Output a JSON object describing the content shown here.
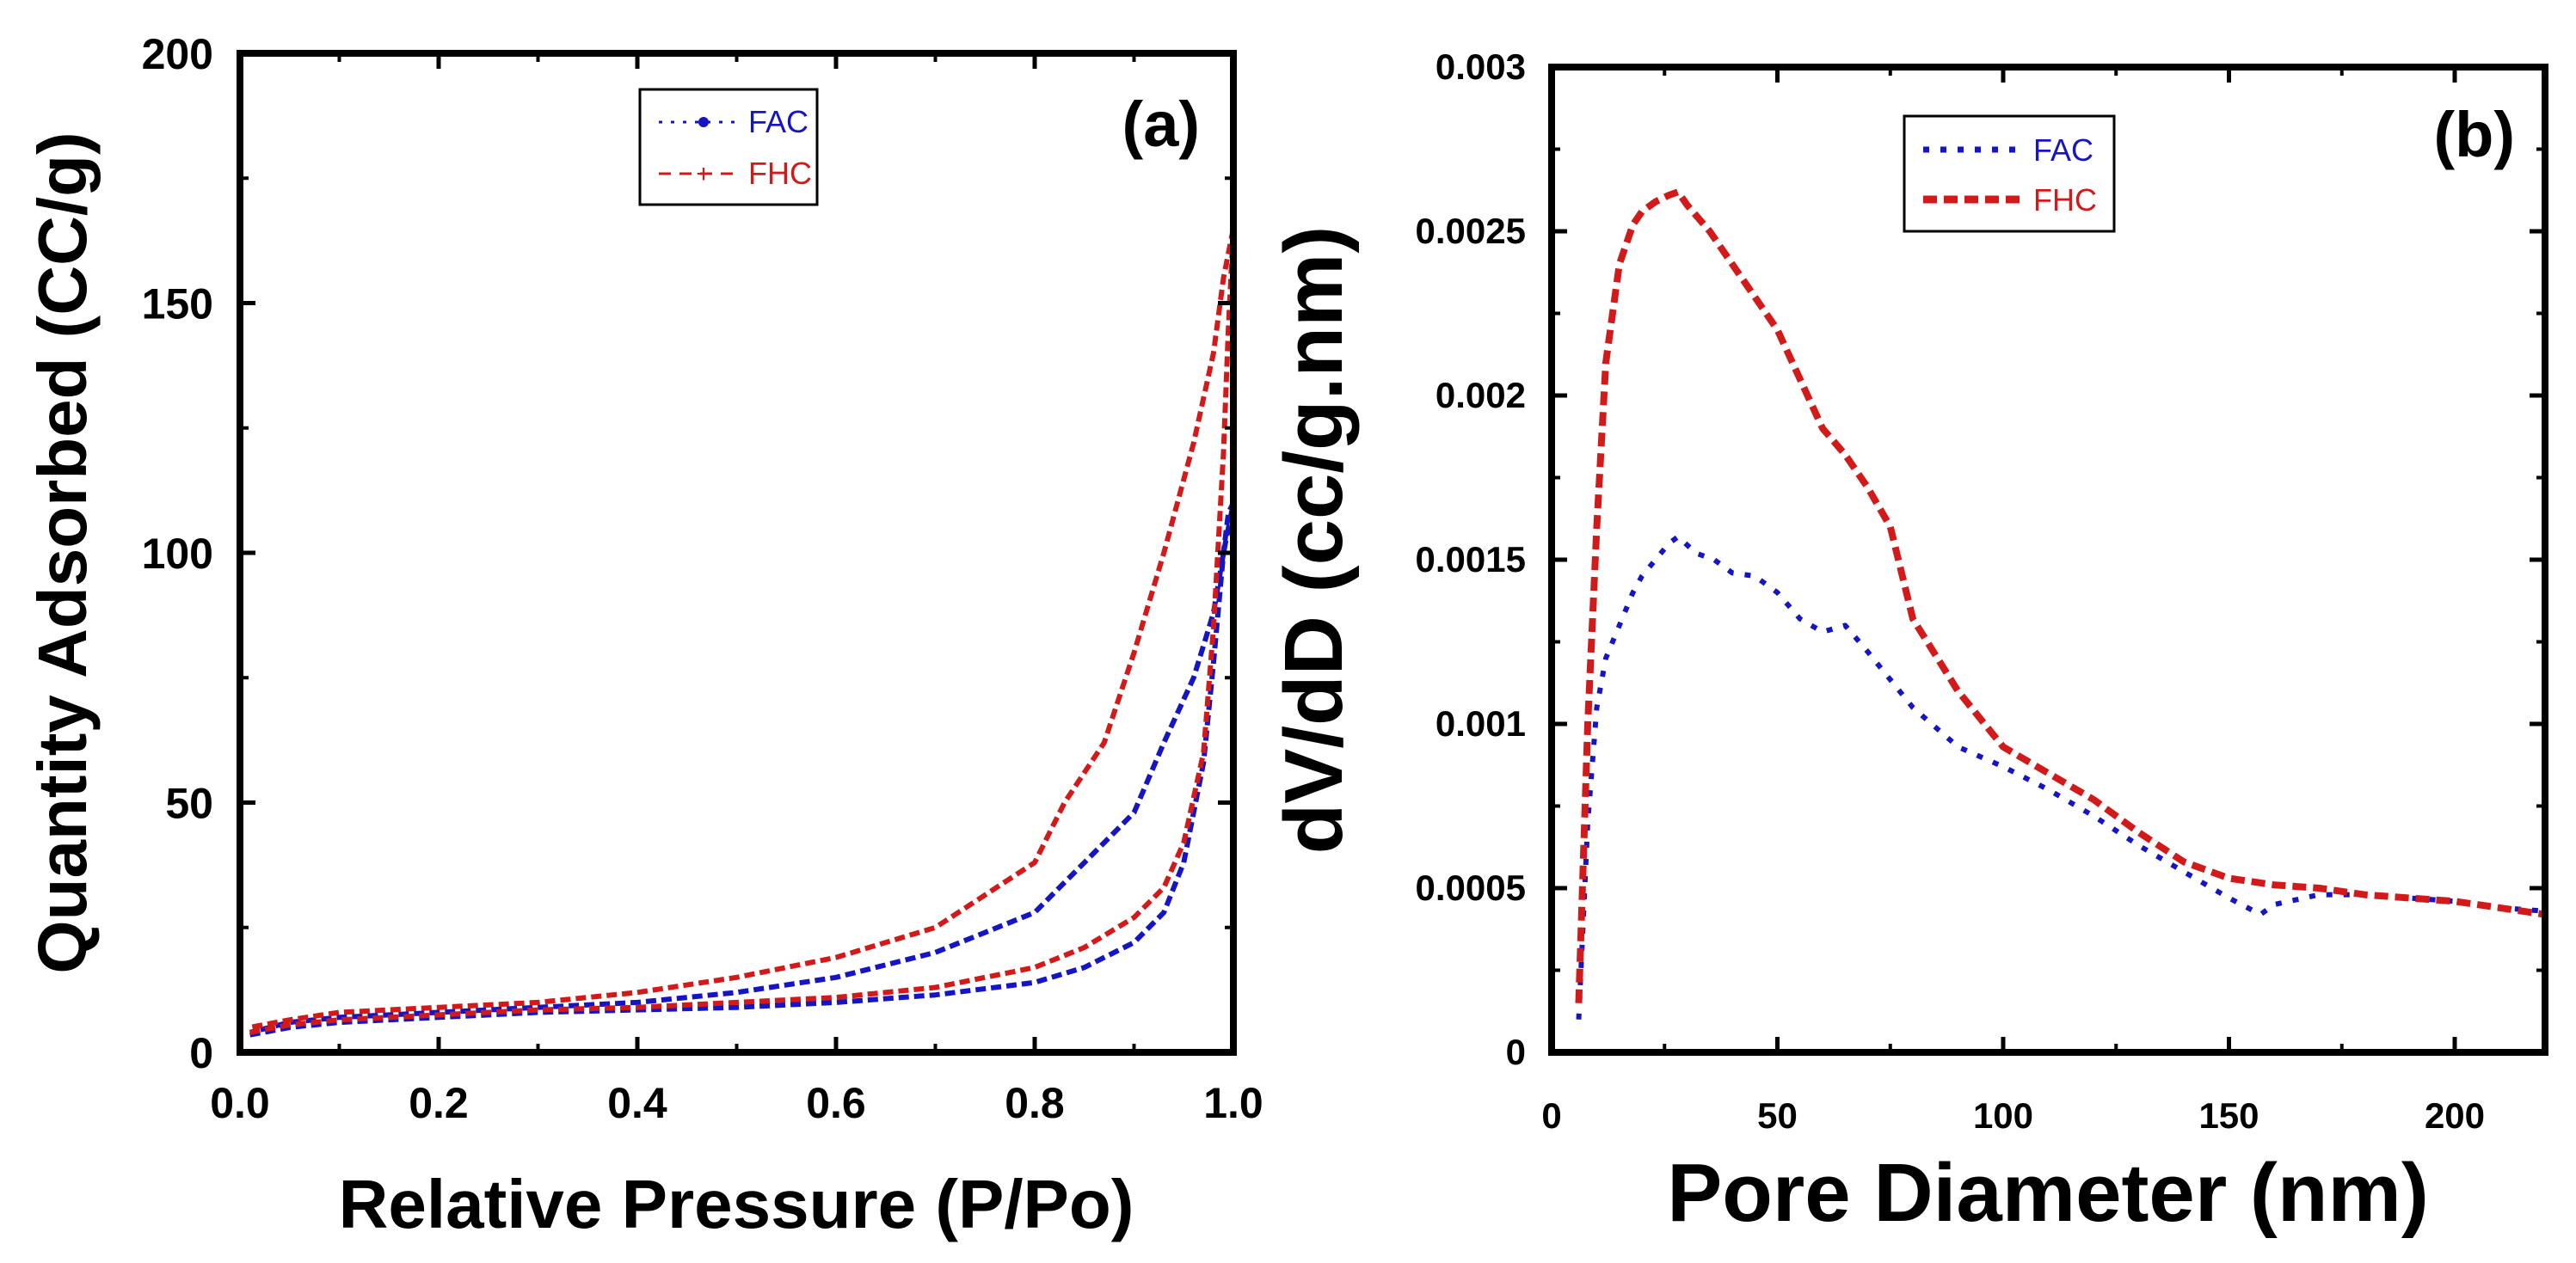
{
  "colors": {
    "fac": "#1515c4",
    "fhc": "#d21a1a",
    "axis": "#000000"
  },
  "chart_data": [
    {
      "type": "line",
      "panel_label": "(a)",
      "xlabel": "Relative Pressure (P/Po)",
      "ylabel": "Quantity Adsorbed (CC/g)",
      "xlim": [
        0,
        1.0
      ],
      "ylim": [
        0,
        200
      ],
      "xticks": [
        "0.0",
        "0.2",
        "0.4",
        "0.6",
        "0.8",
        "1.0"
      ],
      "yticks": [
        "0",
        "50",
        "100",
        "150",
        "200"
      ],
      "legend": {
        "position": "top-center",
        "entries": [
          "FAC",
          "FHC"
        ]
      },
      "series": [
        {
          "name": "FAC",
          "color_key": "fac",
          "x": [
            0.01,
            0.05,
            0.1,
            0.2,
            0.3,
            0.4,
            0.5,
            0.6,
            0.7,
            0.8,
            0.85,
            0.9,
            0.93,
            0.95,
            0.97,
            0.98,
            0.99,
            0.995,
            1.0,
            0.99,
            0.98,
            0.96,
            0.93,
            0.9,
            0.85,
            0.8,
            0.7,
            0.6,
            0.5,
            0.4,
            0.3,
            0.2,
            0.1,
            0.05,
            0.01
          ],
          "y": [
            3.5,
            5,
            6,
            7,
            8,
            8.5,
            9,
            10,
            11.5,
            14,
            17,
            22,
            28,
            38,
            58,
            78,
            100,
            108,
            110,
            100,
            88,
            75,
            62,
            48,
            38,
            28,
            20,
            15,
            12,
            10,
            9,
            8,
            7,
            6,
            4
          ]
        },
        {
          "name": "FHC",
          "color_key": "fhc",
          "x": [
            0.01,
            0.05,
            0.1,
            0.2,
            0.3,
            0.4,
            0.5,
            0.6,
            0.7,
            0.8,
            0.85,
            0.9,
            0.93,
            0.95,
            0.97,
            0.98,
            0.99,
            0.995,
            1.0,
            0.99,
            0.98,
            0.96,
            0.93,
            0.9,
            0.87,
            0.83,
            0.8,
            0.7,
            0.6,
            0.5,
            0.4,
            0.3,
            0.2,
            0.1,
            0.05,
            0.01
          ],
          "y": [
            4,
            5.5,
            6.5,
            7.5,
            8.5,
            9,
            10,
            11,
            13,
            17,
            21,
            27,
            33,
            42,
            60,
            85,
            120,
            145,
            165,
            155,
            140,
            122,
            100,
            80,
            62,
            50,
            38,
            25,
            19,
            15,
            12,
            10,
            9,
            8,
            6.5,
            5
          ]
        }
      ]
    },
    {
      "type": "line",
      "panel_label": "(b)",
      "xlabel": "Pore Diameter (nm)",
      "ylabel": "dV/dD (cc/g.nm)",
      "xlim": [
        0,
        220
      ],
      "ylim": [
        0,
        0.003
      ],
      "xticks": [
        "0",
        "50",
        "100",
        "150",
        "200"
      ],
      "yticks": [
        "0",
        "0.0005",
        "0.001",
        "0.0015",
        "0.002",
        "0.0025",
        "0.003"
      ],
      "legend": {
        "position": "top-center",
        "entries": [
          "FAC",
          "FHC"
        ]
      },
      "series": [
        {
          "name": "FAC",
          "color_key": "fac",
          "x": [
            6,
            8,
            10,
            12,
            15,
            18,
            20,
            23,
            26,
            28,
            32,
            36,
            40,
            45,
            50,
            55,
            60,
            65,
            70,
            80,
            90,
            100,
            110,
            120,
            130,
            140,
            150,
            157,
            160,
            170,
            180,
            190,
            200,
            210,
            220
          ],
          "y": [
            0.0001,
            0.0007,
            0.00105,
            0.0012,
            0.0013,
            0.0014,
            0.00145,
            0.0015,
            0.00155,
            0.00157,
            0.00152,
            0.0015,
            0.00146,
            0.00145,
            0.0014,
            0.00132,
            0.00128,
            0.0013,
            0.00122,
            0.00105,
            0.00093,
            0.00087,
            0.0008,
            0.00072,
            0.00063,
            0.00055,
            0.00047,
            0.00042,
            0.00045,
            0.00048,
            0.00048,
            0.00047,
            0.00046,
            0.00044,
            0.00043
          ]
        },
        {
          "name": "FHC",
          "color_key": "fhc",
          "x": [
            6,
            8,
            10,
            12,
            15,
            18,
            20,
            23,
            26,
            28,
            30,
            35,
            40,
            45,
            50,
            55,
            60,
            65,
            70,
            75,
            80,
            90,
            100,
            110,
            120,
            130,
            140,
            150,
            160,
            170,
            180,
            190,
            200,
            210,
            220
          ],
          "y": [
            0.00015,
            0.001,
            0.0016,
            0.0021,
            0.0024,
            0.00252,
            0.00256,
            0.00259,
            0.00261,
            0.00262,
            0.00258,
            0.0025,
            0.0024,
            0.0023,
            0.0022,
            0.00205,
            0.0019,
            0.00182,
            0.00172,
            0.0016,
            0.00132,
            0.0011,
            0.00093,
            0.00085,
            0.00077,
            0.00067,
            0.00058,
            0.00053,
            0.00051,
            0.0005,
            0.00048,
            0.00047,
            0.00046,
            0.00044,
            0.00042
          ]
        }
      ]
    }
  ]
}
